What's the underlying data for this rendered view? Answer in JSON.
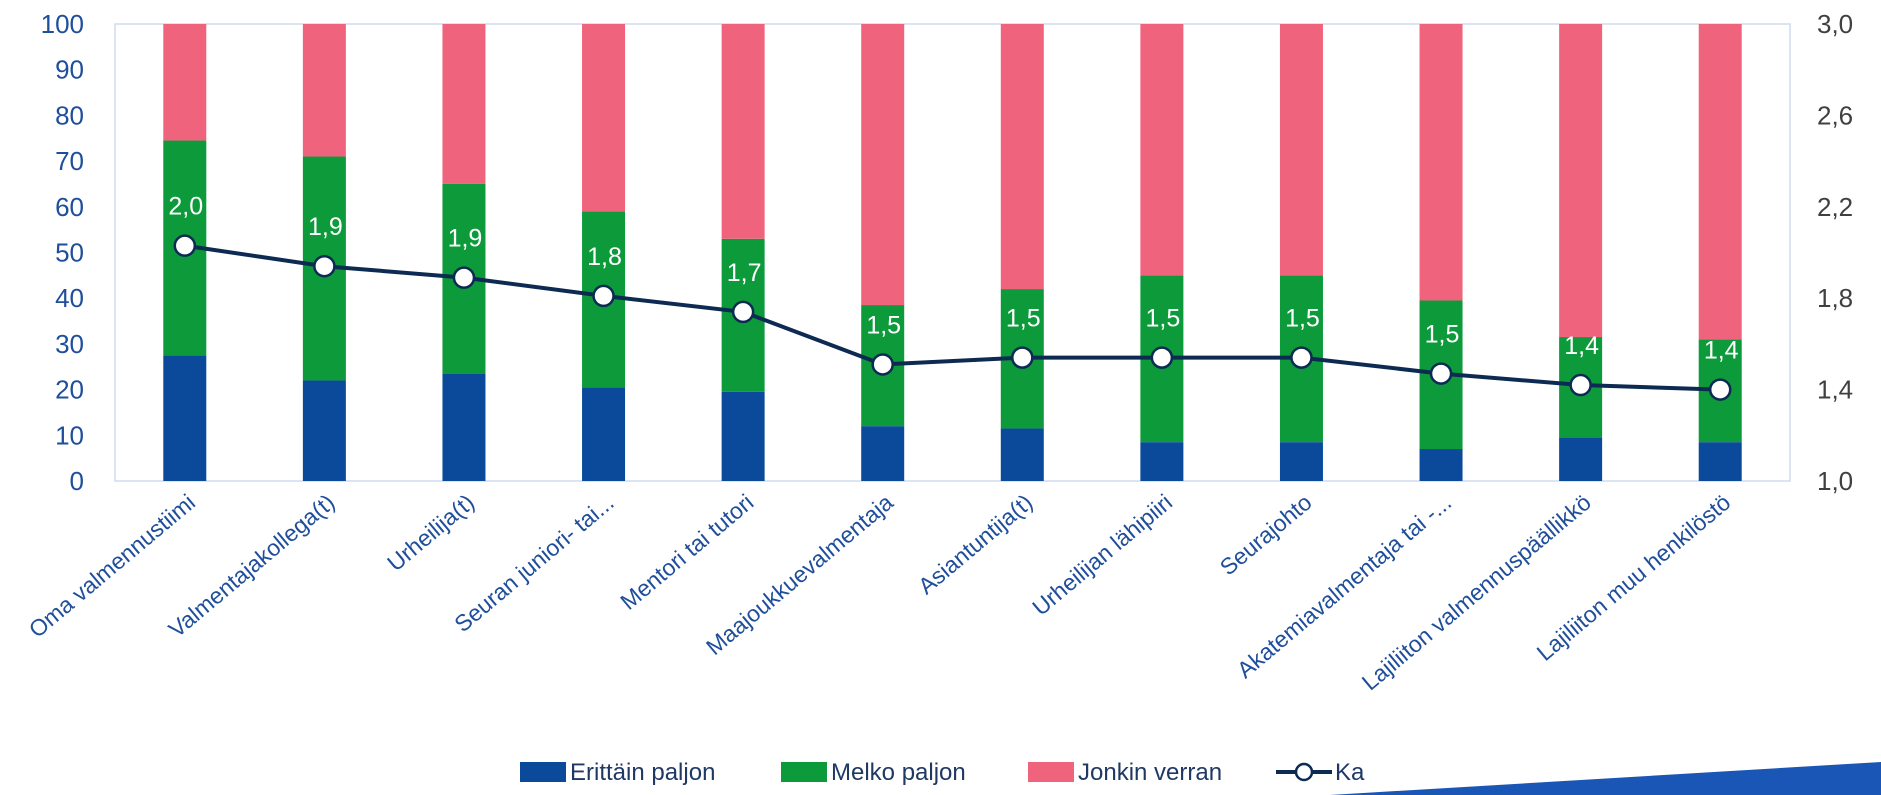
{
  "chart_data": {
    "type": "bar",
    "stacked": true,
    "categories": [
      "Oma valmennustiimi",
      "Valmentajakollega(t)",
      "Urheilija(t)",
      "Seuran juniori- tai...",
      "Mentori tai tutori",
      "Maajoukkuevalmentaja",
      "Asiantuntija(t)",
      "Urheilijan lähipiiri",
      "Seurajohto",
      "Akatemiavalmentaja tai -...",
      "Lajiliiton valmennuspäällikkö",
      "Lajiliiton muu henkilöstö"
    ],
    "series": [
      {
        "name": "Erittäin paljon",
        "color": "#0b4a9a",
        "axis": "left",
        "values": [
          27.5,
          22,
          23.5,
          20.5,
          19.5,
          12,
          11.5,
          8.5,
          8.5,
          7,
          9.5,
          8.5
        ]
      },
      {
        "name": "Melko paljon",
        "color": "#0c9a3a",
        "axis": "left",
        "values": [
          47,
          49,
          41.5,
          38.5,
          33.5,
          26.5,
          30.5,
          36.5,
          36.5,
          32.5,
          22,
          22.5
        ]
      },
      {
        "name": "Jonkin verran",
        "color": "#f0637c",
        "axis": "left",
        "values": [
          25.5,
          29,
          35,
          41,
          47,
          61.5,
          58,
          55,
          55,
          60.5,
          68.5,
          69
        ]
      },
      {
        "name": "Ka",
        "type": "line",
        "color": "#0c2a52",
        "axis": "right",
        "values": [
          2.03,
          1.94,
          1.89,
          1.81,
          1.74,
          1.51,
          1.54,
          1.54,
          1.54,
          1.47,
          1.42,
          1.4
        ],
        "labels": [
          "2,0",
          "1,9",
          "1,9",
          "1,8",
          "1,7",
          "1,5",
          "1,5",
          "1,5",
          "1,5",
          "1,5",
          "1,4",
          "1,4"
        ]
      }
    ],
    "ylim": [
      0,
      100
    ],
    "yticks": [
      "0",
      "10",
      "20",
      "30",
      "40",
      "50",
      "60",
      "70",
      "80",
      "90",
      "100"
    ],
    "y2lim": [
      1.0,
      3.0
    ],
    "y2ticks": [
      "1,0",
      "1,4",
      "1,8",
      "2,2",
      "2,6",
      "3,0"
    ],
    "legend_position": "bottom",
    "grid": false
  }
}
